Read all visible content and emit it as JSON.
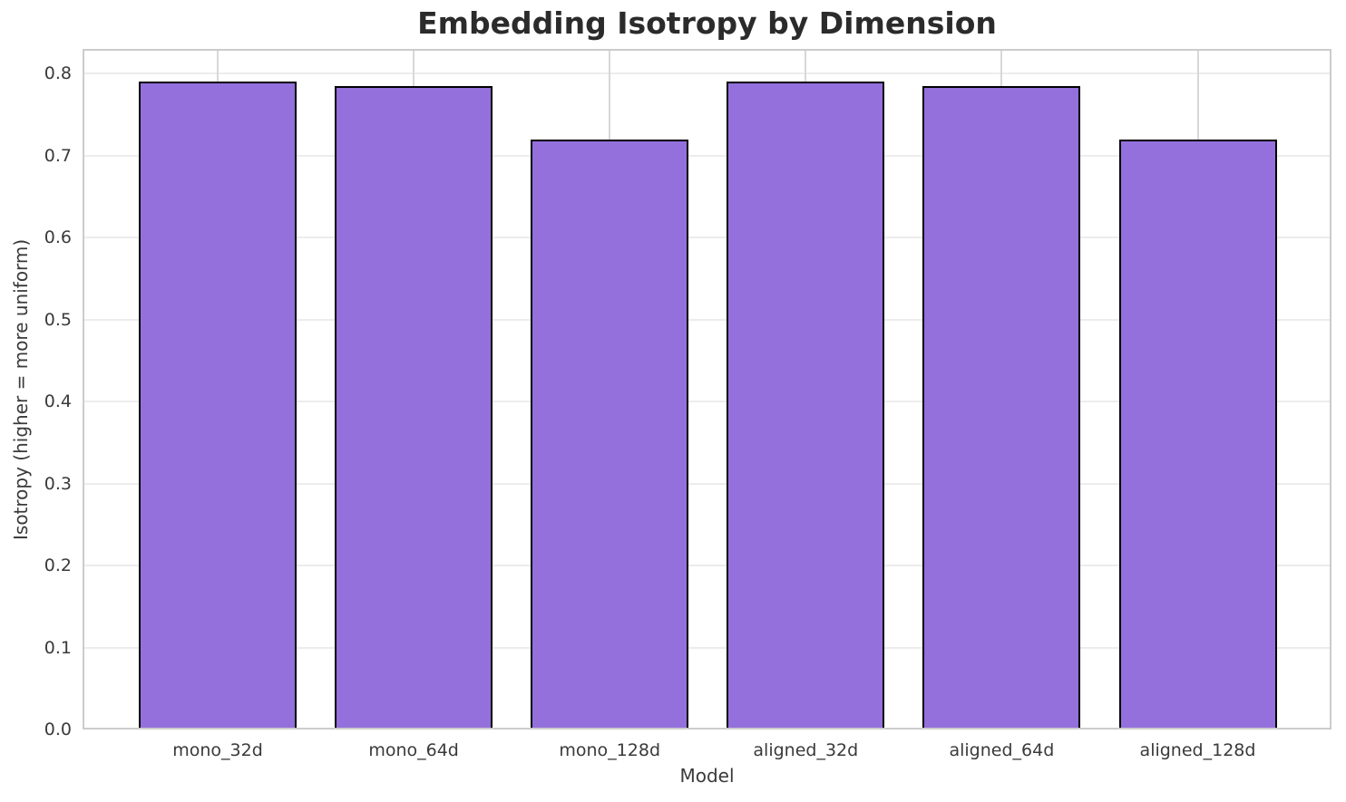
{
  "chart_data": {
    "type": "bar",
    "title": "Embedding Isotropy by Dimension",
    "xlabel": "Model",
    "ylabel": "Isotropy (higher = more uniform)",
    "categories": [
      "mono_32d",
      "mono_64d",
      "mono_128d",
      "aligned_32d",
      "aligned_64d",
      "aligned_128d"
    ],
    "values": [
      0.79,
      0.785,
      0.72,
      0.79,
      0.785,
      0.72
    ],
    "yticks": [
      0.0,
      0.1,
      0.2,
      0.3,
      0.4,
      0.5,
      0.6,
      0.7,
      0.8
    ],
    "ytick_labels": [
      "0.0",
      "0.1",
      "0.2",
      "0.3",
      "0.4",
      "0.5",
      "0.6",
      "0.7",
      "0.8"
    ],
    "ylim": [
      0,
      0.83
    ],
    "grid": true,
    "legend": "none",
    "colors": {
      "bar_fill": "#9370DB",
      "bar_edge": "#000000",
      "grid_horizontal": "#ececec",
      "grid_vertical": "#d8d8d8",
      "spine": "#cccccc",
      "title_text": "#2b2b2b",
      "axis_text": "#3a3a3a",
      "background": "#ffffff"
    }
  }
}
